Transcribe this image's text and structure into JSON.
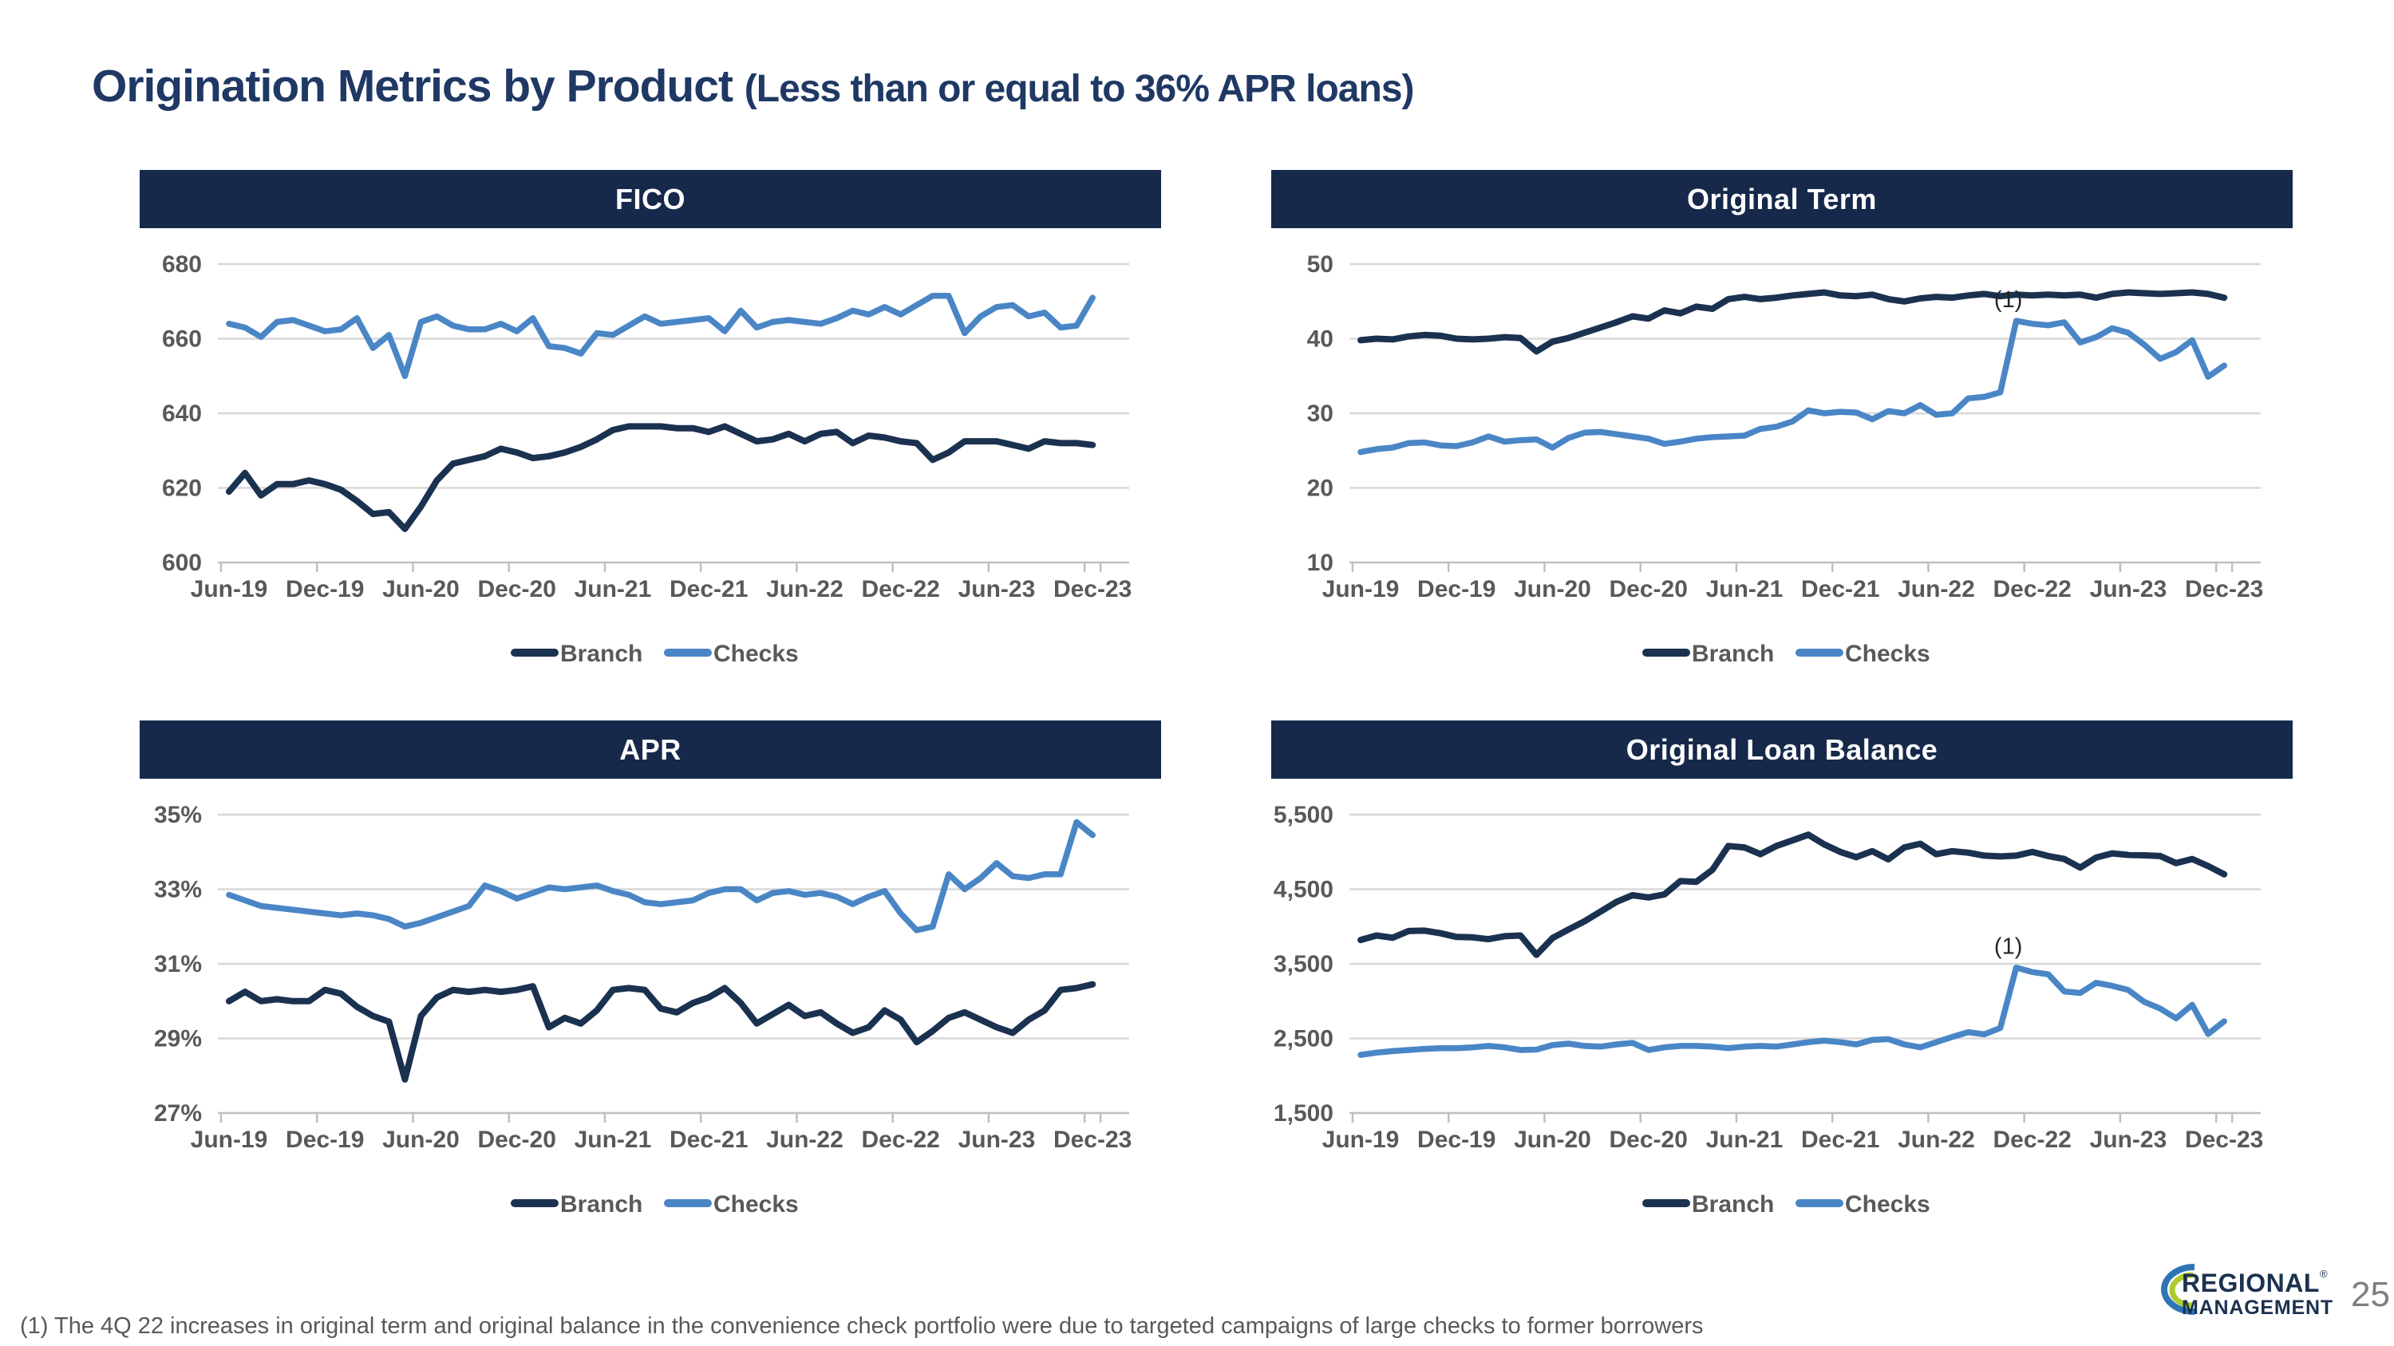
{
  "page": {
    "title_main": "Origination Metrics by Product",
    "title_qualifier": "(Less than or equal to 36% APR loans)",
    "footnote": "(1)  The 4Q 22 increases in original term and original balance in the convenience check portfolio were due to targeted campaigns of large checks to former borrowers",
    "page_number": "25"
  },
  "logo": {
    "line1": "REGIONAL",
    "line2": "MANAGEMENT",
    "reg_mark": "®"
  },
  "colors": {
    "header_bg": "#16294B",
    "header_text": "#FFFFFF",
    "branch_line": "#1B3150",
    "checks_line": "#4A86C6",
    "gridline": "#D8D8D8",
    "axis_line": "#BFBFBF",
    "axis_text": "#595959",
    "legend_text": "#595959",
    "title_text": "#1F3864",
    "annotation_text": "#262626",
    "footnote_text": "#595959",
    "logo_navy": "#1B3150",
    "logo_blue": "#2E75B6",
    "logo_green": "#AFCA2E",
    "page_number_text": "#7F7F7F"
  },
  "x_tick_labels": [
    "Jun-19",
    "Dec-19",
    "Jun-20",
    "Dec-20",
    "Jun-21",
    "Dec-21",
    "Jun-22",
    "Dec-22",
    "Jun-23",
    "Dec-23"
  ],
  "x_months": [
    "Jun-19",
    "Jul-19",
    "Aug-19",
    "Sep-19",
    "Oct-19",
    "Nov-19",
    "Dec-19",
    "Jan-20",
    "Feb-20",
    "Mar-20",
    "Apr-20",
    "May-20",
    "Jun-20",
    "Jul-20",
    "Aug-20",
    "Sep-20",
    "Oct-20",
    "Nov-20",
    "Dec-20",
    "Jan-21",
    "Feb-21",
    "Mar-21",
    "Apr-21",
    "May-21",
    "Jun-21",
    "Jul-21",
    "Aug-21",
    "Sep-21",
    "Oct-21",
    "Nov-21",
    "Dec-21",
    "Jan-22",
    "Feb-22",
    "Mar-22",
    "Apr-22",
    "May-22",
    "Jun-22",
    "Jul-22",
    "Aug-22",
    "Sep-22",
    "Oct-22",
    "Nov-22",
    "Dec-22",
    "Jan-23",
    "Feb-23",
    "Mar-23",
    "Apr-23",
    "May-23",
    "Jun-23",
    "Jul-23",
    "Aug-23",
    "Sep-23",
    "Oct-23",
    "Nov-23",
    "Dec-23"
  ],
  "chart_data": [
    {
      "id": "fico",
      "type": "line",
      "title": "FICO",
      "ylim": [
        600,
        680
      ],
      "y_ticks": [
        680,
        660,
        640,
        620,
        600
      ],
      "y_tick_labels": [
        "680",
        "660",
        "640",
        "620",
        "600"
      ],
      "grid": "horizontal",
      "legend_position": "bottom",
      "annotation": null,
      "series": [
        {
          "name": "Branch",
          "color": "#1B3150",
          "values": [
            619,
            624,
            618,
            621,
            621,
            622,
            621,
            619.5,
            616.5,
            613,
            613.5,
            609,
            615,
            622,
            626.5,
            627.5,
            628.5,
            630.5,
            629.5,
            628,
            628.5,
            629.5,
            631,
            633,
            635.5,
            636.5,
            636.5,
            636.5,
            636,
            636,
            635,
            636.5,
            634.5,
            632.5,
            633,
            634.5,
            632.5,
            634.5,
            635,
            632,
            634,
            633.5,
            632.5,
            632,
            627.5,
            629.5,
            632.5,
            632.5,
            632.5,
            631.5,
            630.5,
            632.5,
            632,
            632,
            631.5
          ]
        },
        {
          "name": "Checks",
          "color": "#4A86C6",
          "values": [
            664,
            663,
            660.5,
            664.5,
            665,
            663.5,
            662,
            662.5,
            665.5,
            657.5,
            661,
            650,
            664.5,
            666,
            663.5,
            662.5,
            662.5,
            664,
            662,
            665.5,
            658,
            657.5,
            656,
            661.5,
            661,
            663.5,
            666,
            664,
            664.5,
            665,
            665.5,
            662,
            667.5,
            663,
            664.5,
            665,
            664.5,
            664,
            665.5,
            667.5,
            666.5,
            668.5,
            666.5,
            669,
            671.5,
            671.5,
            661.5,
            666,
            668.5,
            669,
            666,
            667,
            663,
            663.5,
            671
          ]
        }
      ]
    },
    {
      "id": "term",
      "type": "line",
      "title": "Original Term",
      "ylim": [
        10,
        50
      ],
      "y_ticks": [
        50,
        40,
        30,
        20,
        10
      ],
      "y_tick_labels": [
        "50",
        "40",
        "30",
        "20",
        "10"
      ],
      "grid": "horizontal",
      "legend_position": "bottom",
      "annotation": {
        "label": "(1)",
        "series": "Checks",
        "month_index": 41
      },
      "series": [
        {
          "name": "Branch",
          "color": "#1B3150",
          "values": [
            39.8,
            40,
            39.9,
            40.3,
            40.5,
            40.4,
            40,
            39.9,
            40,
            40.2,
            40.1,
            38.3,
            39.6,
            40.1,
            40.8,
            41.5,
            42.2,
            43,
            42.7,
            43.8,
            43.4,
            44.3,
            44,
            45.3,
            45.6,
            45.3,
            45.5,
            45.8,
            46,
            46.2,
            45.8,
            45.7,
            45.9,
            45.3,
            45,
            45.4,
            45.6,
            45.5,
            45.8,
            46,
            45.7,
            45.9,
            45.8,
            45.9,
            45.8,
            45.9,
            45.5,
            46,
            46.2,
            46.1,
            46,
            46.1,
            46.2,
            46,
            45.5
          ]
        },
        {
          "name": "Checks",
          "color": "#4A86C6",
          "values": [
            24.8,
            25.2,
            25.4,
            26,
            26.1,
            25.7,
            25.6,
            26.1,
            26.9,
            26.2,
            26.4,
            26.5,
            25.4,
            26.7,
            27.4,
            27.5,
            27.2,
            26.9,
            26.6,
            25.9,
            26.2,
            26.6,
            26.8,
            26.9,
            27,
            27.9,
            28.2,
            28.9,
            30.4,
            30,
            30.2,
            30.1,
            29.2,
            30.3,
            30,
            31.1,
            29.8,
            30,
            32,
            32.2,
            32.8,
            42.4,
            42,
            41.8,
            42.2,
            39.5,
            40.2,
            41.4,
            40.8,
            39.2,
            37.3,
            38.2,
            39.8,
            34.9,
            36.4
          ]
        }
      ]
    },
    {
      "id": "apr",
      "type": "line",
      "title": "APR",
      "ylim": [
        27,
        35
      ],
      "y_ticks": [
        35,
        33,
        31,
        29,
        27
      ],
      "y_tick_labels": [
        "35%",
        "33%",
        "31%",
        "29%",
        "27%"
      ],
      "grid": "horizontal",
      "legend_position": "bottom",
      "annotation": null,
      "series": [
        {
          "name": "Branch",
          "color": "#1B3150",
          "values": [
            30,
            30.25,
            30,
            30.05,
            30,
            30,
            30.3,
            30.2,
            29.85,
            29.6,
            29.45,
            27.9,
            29.6,
            30.1,
            30.3,
            30.25,
            30.3,
            30.25,
            30.3,
            30.4,
            29.3,
            29.55,
            29.4,
            29.75,
            30.3,
            30.35,
            30.3,
            29.8,
            29.7,
            29.95,
            30.1,
            30.35,
            29.95,
            29.4,
            29.65,
            29.9,
            29.6,
            29.7,
            29.4,
            29.15,
            29.3,
            29.75,
            29.5,
            28.9,
            29.2,
            29.55,
            29.7,
            29.5,
            29.3,
            29.15,
            29.5,
            29.75,
            30.3,
            30.35,
            30.45
          ]
        },
        {
          "name": "Checks",
          "color": "#4A86C6",
          "values": [
            32.85,
            32.7,
            32.55,
            32.5,
            32.45,
            32.4,
            32.35,
            32.3,
            32.35,
            32.3,
            32.2,
            32,
            32.1,
            32.25,
            32.4,
            32.55,
            33.1,
            32.95,
            32.75,
            32.9,
            33.05,
            33,
            33.05,
            33.1,
            32.95,
            32.85,
            32.65,
            32.6,
            32.65,
            32.7,
            32.9,
            33,
            33,
            32.7,
            32.9,
            32.95,
            32.85,
            32.9,
            32.8,
            32.6,
            32.8,
            32.95,
            32.35,
            31.9,
            32,
            33.4,
            33,
            33.3,
            33.7,
            33.35,
            33.3,
            33.4,
            33.4,
            34.8,
            34.45
          ]
        }
      ]
    },
    {
      "id": "olb",
      "type": "line",
      "title": "Original Loan Balance",
      "ylim": [
        1500,
        5500
      ],
      "y_ticks": [
        5500,
        4500,
        3500,
        2500,
        1500
      ],
      "y_tick_labels": [
        "5,500",
        "4,500",
        "3,500",
        "2,500",
        "1,500"
      ],
      "grid": "horizontal",
      "legend_position": "bottom",
      "annotation": {
        "label": "(1)",
        "series": "Checks",
        "month_index": 41
      },
      "series": [
        {
          "name": "Branch",
          "color": "#1B3150",
          "values": [
            3820,
            3880,
            3850,
            3940,
            3945,
            3910,
            3860,
            3855,
            3830,
            3870,
            3880,
            3620,
            3845,
            3960,
            4070,
            4200,
            4330,
            4420,
            4390,
            4430,
            4610,
            4600,
            4760,
            5080,
            5060,
            4970,
            5080,
            5155,
            5230,
            5100,
            5000,
            4930,
            5010,
            4900,
            5060,
            5110,
            4970,
            5010,
            4990,
            4950,
            4940,
            4950,
            5000,
            4945,
            4905,
            4790,
            4925,
            4980,
            4960,
            4955,
            4945,
            4850,
            4905,
            4810,
            4700
          ]
        },
        {
          "name": "Checks",
          "color": "#4A86C6",
          "values": [
            2280,
            2310,
            2330,
            2345,
            2360,
            2370,
            2370,
            2380,
            2400,
            2380,
            2345,
            2350,
            2410,
            2430,
            2400,
            2390,
            2420,
            2440,
            2345,
            2380,
            2400,
            2400,
            2390,
            2370,
            2390,
            2400,
            2390,
            2420,
            2450,
            2470,
            2450,
            2420,
            2480,
            2490,
            2420,
            2380,
            2450,
            2520,
            2585,
            2555,
            2640,
            3450,
            3390,
            3360,
            3130,
            3110,
            3245,
            3205,
            3150,
            2990,
            2900,
            2770,
            2950,
            2560,
            2730
          ]
        }
      ]
    }
  ]
}
